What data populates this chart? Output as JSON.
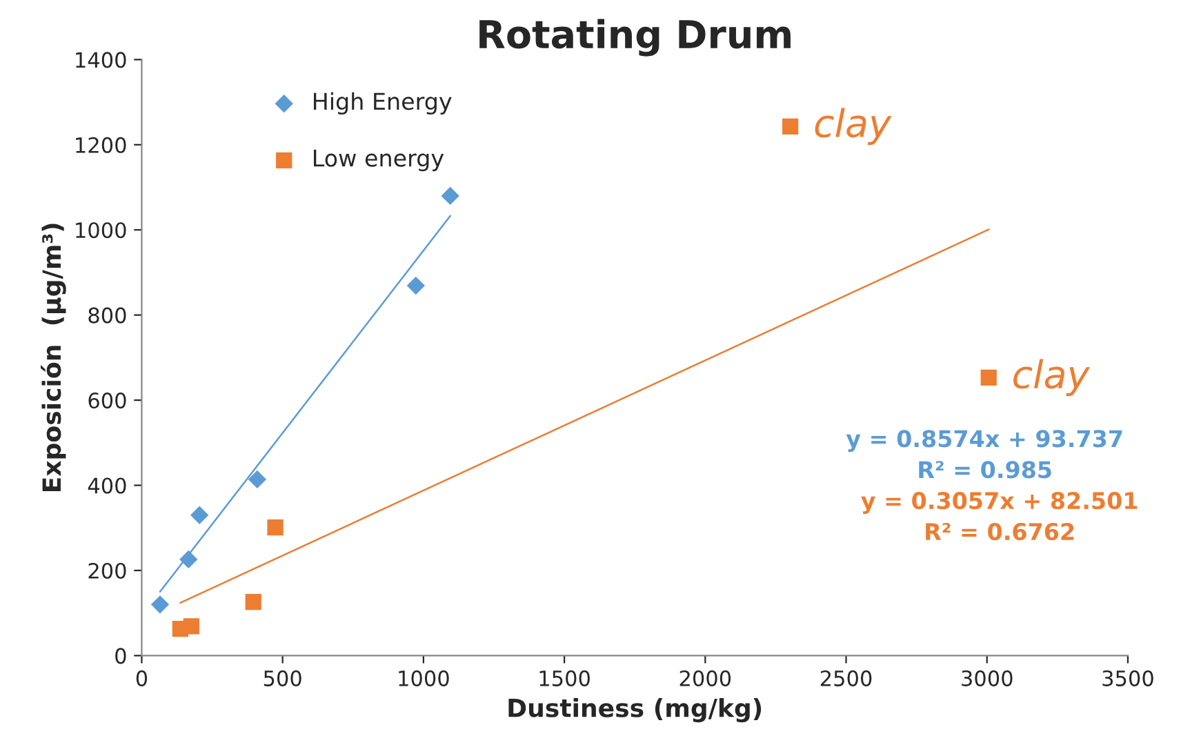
{
  "chart_data": {
    "type": "scatter",
    "title": "Rotating Drum",
    "xlabel": "Dustiness (mg/kg)",
    "ylabel": "Exposición  (µg/m³)",
    "series": [
      {
        "name": "High Energy",
        "color": "#5b9bd5",
        "marker": "diamond",
        "x": [
          65,
          166,
          205,
          410,
          973,
          1095
        ],
        "values": [
          120,
          226,
          330,
          414,
          869,
          1080
        ]
      },
      {
        "name": "Low energy",
        "color": "#ed7d31",
        "marker": "square",
        "x": [
          137,
          176,
          396,
          474,
          2302,
          3006
        ],
        "values": [
          63,
          69,
          126,
          301,
          1243,
          653
        ]
      },
      {
        "type": "line",
        "color": "#5b9bd5",
        "x": [
          65,
          1095
        ],
        "values": [
          150,
          1033
        ]
      },
      {
        "type": "line",
        "color": "#ed7d31",
        "x": [
          137,
          3006
        ],
        "values": [
          124,
          1001
        ]
      }
    ],
    "annotations": [
      {
        "text": "clay",
        "x": 2302,
        "y": 1243
      },
      {
        "text": "clay",
        "x": 3006,
        "y": 653
      },
      "y = 0.8574x + 93.737",
      "R² = 0.985",
      "y = 0.3057x + 82.501",
      "R² = 0.6762"
    ],
    "xlim": [
      0,
      3500
    ],
    "xticks": [
      0,
      500,
      1000,
      1500,
      2000,
      2500,
      3000,
      3500
    ],
    "ylim": [
      0,
      1400
    ],
    "yticks": [
      0,
      200,
      400,
      600,
      800,
      1000,
      1200,
      1400
    ],
    "legend": "top left",
    "grid": false
  }
}
